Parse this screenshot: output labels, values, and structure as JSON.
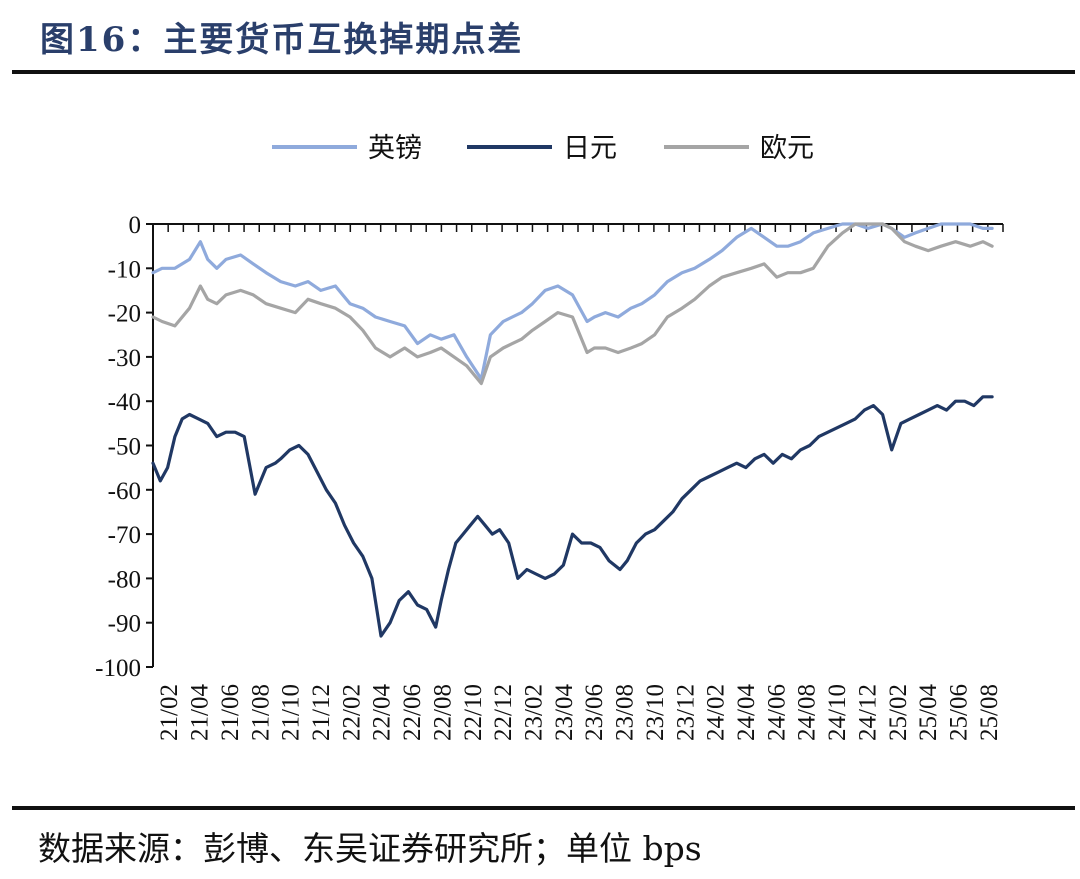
{
  "header": {
    "title": "图16：主要货币互换掉期点差"
  },
  "footer": {
    "source": "数据来源：彭博、东吴证券研究所；单位 bps"
  },
  "chart_data": {
    "type": "line",
    "title": "图16：主要货币互换掉期点差",
    "ylabel": "",
    "xlabel": "",
    "ylim": [
      -100,
      0
    ],
    "yticks": [
      0,
      -10,
      -20,
      -30,
      -40,
      -50,
      -60,
      -70,
      -80,
      -90,
      -100
    ],
    "x_tick_labels": [
      "21/02",
      "21/04",
      "21/06",
      "21/08",
      "21/10",
      "21/12",
      "22/02",
      "22/04",
      "22/06",
      "22/08",
      "22/10",
      "22/12",
      "23/02",
      "23/04",
      "23/06",
      "23/08",
      "23/10",
      "23/12",
      "24/02",
      "24/04",
      "24/06",
      "24/08",
      "24/10",
      "24/12",
      "25/02",
      "25/04",
      "25/06",
      "25/08"
    ],
    "x_range": [
      "2021-01",
      "2025-08"
    ],
    "grid": false,
    "legend_position": "top",
    "series": [
      {
        "name": "英镑",
        "color": "#8faadc",
        "x": [
          2021.0,
          2021.05,
          2021.12,
          2021.2,
          2021.26,
          2021.3,
          2021.35,
          2021.4,
          2021.48,
          2021.55,
          2021.62,
          2021.7,
          2021.78,
          2021.85,
          2021.92,
          2022.0,
          2022.08,
          2022.15,
          2022.22,
          2022.3,
          2022.38,
          2022.45,
          2022.52,
          2022.58,
          2022.65,
          2022.72,
          2022.8,
          2022.85,
          2022.92,
          2022.97,
          2023.02,
          2023.08,
          2023.15,
          2023.22,
          2023.3,
          2023.38,
          2023.42,
          2023.48,
          2023.55,
          2023.62,
          2023.68,
          2023.75,
          2023.82,
          2023.9,
          2023.97,
          2024.05,
          2024.12,
          2024.2,
          2024.28,
          2024.35,
          2024.42,
          2024.48,
          2024.55,
          2024.62,
          2024.7,
          2024.78,
          2024.85,
          2024.92,
          2025.0,
          2025.05,
          2025.12,
          2025.18,
          2025.25,
          2025.32,
          2025.4,
          2025.48,
          2025.55,
          2025.6
        ],
        "values": [
          -11,
          -10,
          -10,
          -8,
          -4,
          -8,
          -10,
          -8,
          -7,
          -9,
          -11,
          -13,
          -14,
          -13,
          -15,
          -14,
          -18,
          -19,
          -21,
          -22,
          -23,
          -27,
          -25,
          -26,
          -25,
          -30,
          -35,
          -25,
          -22,
          -21,
          -20,
          -18,
          -15,
          -14,
          -16,
          -22,
          -21,
          -20,
          -21,
          -19,
          -18,
          -16,
          -13,
          -11,
          -10,
          -8,
          -6,
          -3,
          -1,
          -3,
          -5,
          -5,
          -4,
          -2,
          -1,
          0,
          0,
          -1,
          0,
          -1,
          -3,
          -2,
          -1,
          0,
          0,
          0,
          -1,
          -1
        ]
      },
      {
        "name": "日元",
        "color": "#203864",
        "x": [
          2021.0,
          2021.04,
          2021.08,
          2021.12,
          2021.16,
          2021.2,
          2021.25,
          2021.3,
          2021.35,
          2021.4,
          2021.45,
          2021.5,
          2021.56,
          2021.62,
          2021.67,
          2021.7,
          2021.75,
          2021.8,
          2021.85,
          2021.9,
          2021.95,
          2022.0,
          2022.05,
          2022.1,
          2022.15,
          2022.2,
          2022.25,
          2022.3,
          2022.35,
          2022.4,
          2022.45,
          2022.5,
          2022.55,
          2022.58,
          2022.62,
          2022.66,
          2022.7,
          2022.74,
          2022.78,
          2022.82,
          2022.86,
          2022.9,
          2022.95,
          2023.0,
          2023.05,
          2023.1,
          2023.15,
          2023.2,
          2023.25,
          2023.3,
          2023.35,
          2023.4,
          2023.45,
          2023.5,
          2023.56,
          2023.6,
          2023.65,
          2023.7,
          2023.75,
          2023.8,
          2023.85,
          2023.9,
          2023.95,
          2024.0,
          2024.05,
          2024.1,
          2024.15,
          2024.2,
          2024.25,
          2024.3,
          2024.35,
          2024.4,
          2024.45,
          2024.5,
          2024.55,
          2024.6,
          2024.65,
          2024.7,
          2024.75,
          2024.8,
          2024.85,
          2024.9,
          2024.95,
          2025.0,
          2025.05,
          2025.1,
          2025.15,
          2025.2,
          2025.25,
          2025.3,
          2025.35,
          2025.4,
          2025.45,
          2025.5,
          2025.55,
          2025.6
        ],
        "values": [
          -54,
          -58,
          -55,
          -48,
          -44,
          -43,
          -44,
          -45,
          -48,
          -47,
          -47,
          -48,
          -61,
          -55,
          -54,
          -53,
          -51,
          -50,
          -52,
          -56,
          -60,
          -63,
          -68,
          -72,
          -75,
          -80,
          -93,
          -90,
          -85,
          -83,
          -86,
          -87,
          -91,
          -85,
          -78,
          -72,
          -70,
          -68,
          -66,
          -68,
          -70,
          -69,
          -72,
          -80,
          -78,
          -79,
          -80,
          -79,
          -77,
          -70,
          -72,
          -72,
          -73,
          -76,
          -78,
          -76,
          -72,
          -70,
          -69,
          -67,
          -65,
          -62,
          -60,
          -58,
          -57,
          -56,
          -55,
          -54,
          -55,
          -53,
          -52,
          -54,
          -52,
          -53,
          -51,
          -50,
          -48,
          -47,
          -46,
          -45,
          -44,
          -42,
          -41,
          -43,
          -51,
          -45,
          -44,
          -43,
          -42,
          -41,
          -42,
          -40,
          -40,
          -41,
          -39,
          -39
        ]
      },
      {
        "name": "欧元",
        "color": "#a5a5a5",
        "x": [
          2021.0,
          2021.05,
          2021.12,
          2021.2,
          2021.26,
          2021.3,
          2021.35,
          2021.4,
          2021.48,
          2021.55,
          2021.62,
          2021.7,
          2021.78,
          2021.85,
          2021.92,
          2022.0,
          2022.08,
          2022.15,
          2022.22,
          2022.3,
          2022.38,
          2022.45,
          2022.52,
          2022.58,
          2022.65,
          2022.72,
          2022.8,
          2022.85,
          2022.92,
          2022.97,
          2023.02,
          2023.08,
          2023.15,
          2023.22,
          2023.3,
          2023.38,
          2023.42,
          2023.48,
          2023.55,
          2023.62,
          2023.68,
          2023.75,
          2023.82,
          2023.9,
          2023.97,
          2024.05,
          2024.12,
          2024.2,
          2024.28,
          2024.35,
          2024.42,
          2024.48,
          2024.55,
          2024.62,
          2024.7,
          2024.78,
          2024.85,
          2024.92,
          2025.0,
          2025.05,
          2025.12,
          2025.18,
          2025.25,
          2025.32,
          2025.4,
          2025.48,
          2025.55,
          2025.6
        ],
        "values": [
          -21,
          -22,
          -23,
          -19,
          -14,
          -17,
          -18,
          -16,
          -15,
          -16,
          -18,
          -19,
          -20,
          -17,
          -18,
          -19,
          -21,
          -24,
          -28,
          -30,
          -28,
          -30,
          -29,
          -28,
          -30,
          -32,
          -36,
          -30,
          -28,
          -27,
          -26,
          -24,
          -22,
          -20,
          -21,
          -29,
          -28,
          -28,
          -29,
          -28,
          -27,
          -25,
          -21,
          -19,
          -17,
          -14,
          -12,
          -11,
          -10,
          -9,
          -12,
          -11,
          -11,
          -10,
          -5,
          -2,
          0,
          0,
          0,
          -1,
          -4,
          -5,
          -6,
          -5,
          -4,
          -5,
          -4,
          -5
        ]
      }
    ]
  }
}
